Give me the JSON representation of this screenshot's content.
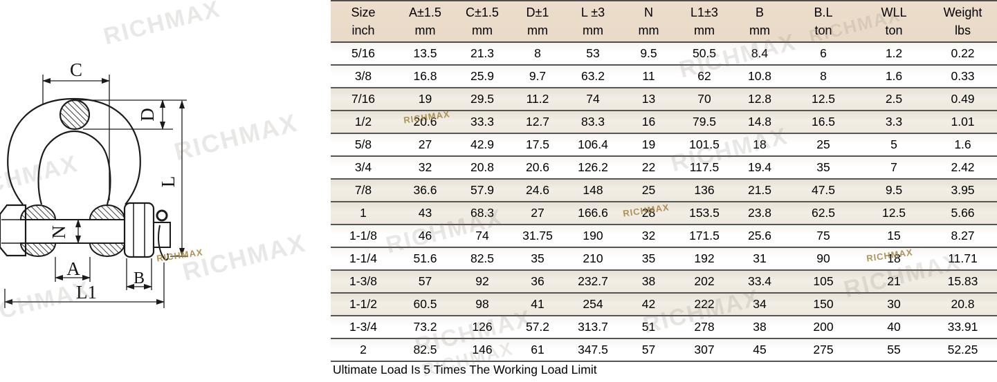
{
  "watermark": {
    "text": "RICHMAX"
  },
  "colors": {
    "header_bg": "#ecdccb",
    "stripe": "#f2eee6",
    "line": "#4d4d4d",
    "gold_wm": "#b3924d"
  },
  "diagram": {
    "labels": {
      "c": "C",
      "d": "D",
      "l": "L",
      "n": "N",
      "a": "A",
      "b": "B",
      "l1": "L1"
    }
  },
  "table": {
    "columns": [
      {
        "label": "Size",
        "unit": "inch"
      },
      {
        "label": "A±1.5",
        "unit": "mm"
      },
      {
        "label": "C±1.5",
        "unit": "mm"
      },
      {
        "label": "D±1",
        "unit": "mm"
      },
      {
        "label": "L ±3",
        "unit": "mm"
      },
      {
        "label": "N",
        "unit": "mm"
      },
      {
        "label": "L1±3",
        "unit": "mm"
      },
      {
        "label": "B",
        "unit": "mm"
      },
      {
        "label": "B.L",
        "unit": "ton"
      },
      {
        "label": "WLL",
        "unit": "ton"
      },
      {
        "label": "Weight",
        "unit": "lbs"
      }
    ],
    "rows": [
      [
        "5/16",
        "13.5",
        "21.3",
        "8",
        "53",
        "9.5",
        "50.5",
        "8.4",
        "6",
        "1.2",
        "0.22"
      ],
      [
        "3/8",
        "16.8",
        "25.9",
        "9.7",
        "63.2",
        "11",
        "62",
        "10.8",
        "8",
        "1.6",
        "0.33"
      ],
      [
        "7/16",
        "19",
        "29.5",
        "11.2",
        "74",
        "13",
        "70",
        "12.8",
        "12.5",
        "2.5",
        "0.49"
      ],
      [
        "1/2",
        "20.6",
        "33.3",
        "12.7",
        "83.3",
        "16",
        "79.5",
        "14.8",
        "16.5",
        "3.3",
        "1.01"
      ],
      [
        "5/8",
        "27",
        "42.9",
        "17.5",
        "106.4",
        "19",
        "101.5",
        "18",
        "25",
        "5",
        "1.6"
      ],
      [
        "3/4",
        "32",
        "20.8",
        "20.6",
        "126.2",
        "22",
        "117.5",
        "19.4",
        "35",
        "7",
        "2.42"
      ],
      [
        "7/8",
        "36.6",
        "57.9",
        "24.6",
        "148",
        "25",
        "136",
        "21.5",
        "47.5",
        "9.5",
        "3.95"
      ],
      [
        "1",
        "43",
        "68.3",
        "27",
        "166.6",
        "28",
        "153.5",
        "23.8",
        "62.5",
        "12.5",
        "5.66"
      ],
      [
        "1-1/8",
        "46",
        "74",
        "31.75",
        "190",
        "32",
        "171.5",
        "25.6",
        "75",
        "15",
        "8.27"
      ],
      [
        "1-1/4",
        "51.6",
        "82.5",
        "35",
        "210",
        "35",
        "192",
        "31",
        "90",
        "18",
        "11.71"
      ],
      [
        "1-3/8",
        "57",
        "92",
        "36",
        "232.7",
        "38",
        "202",
        "33.4",
        "105",
        "21",
        "15.83"
      ],
      [
        "1-1/2",
        "60.5",
        "98",
        "41",
        "254",
        "42",
        "222",
        "34",
        "150",
        "30",
        "20.8"
      ],
      [
        "1-3/4",
        "73.2",
        "126",
        "57.2",
        "313.7",
        "51",
        "278",
        "38",
        "200",
        "40",
        "33.91"
      ],
      [
        "2",
        "82.5",
        "146",
        "61",
        "347.5",
        "57",
        "307",
        "45",
        "275",
        "55",
        "52.25"
      ]
    ]
  },
  "footer": {
    "note": "Ultimate Load Is 5 Times The Working Load Limit"
  }
}
